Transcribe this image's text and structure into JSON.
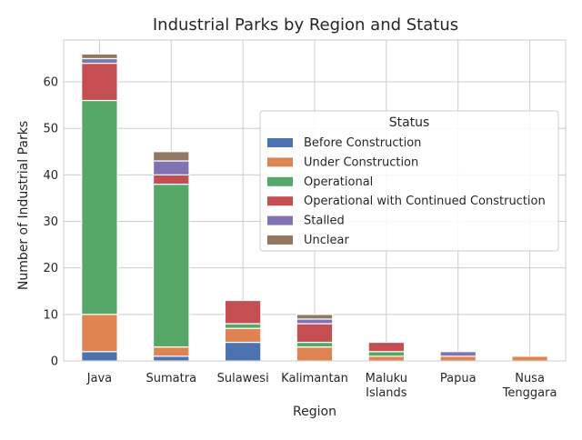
{
  "chart_data": {
    "type": "bar",
    "stacked": true,
    "title": "Industrial Parks by Region and Status",
    "xlabel": "Region",
    "ylabel": "Number of Industrial Parks",
    "categories": [
      [
        "Java"
      ],
      [
        "Sumatra"
      ],
      [
        "Sulawesi"
      ],
      [
        "Kalimantan"
      ],
      [
        "Maluku",
        "Islands"
      ],
      [
        "Papua"
      ],
      [
        "Nusa",
        "Tenggara"
      ]
    ],
    "ylim": [
      0,
      69
    ],
    "yticks": [
      0,
      10,
      20,
      30,
      40,
      50,
      60
    ],
    "grid": true,
    "legend": {
      "title": "Status",
      "placement": "center-right"
    },
    "series": [
      {
        "name": "Before Construction",
        "color": "#4c72b0",
        "values": [
          2,
          1,
          4,
          0,
          0,
          0,
          0
        ]
      },
      {
        "name": "Under Construction",
        "color": "#dd8452",
        "values": [
          8,
          2,
          3,
          3,
          1,
          1,
          1
        ]
      },
      {
        "name": "Operational",
        "color": "#55a868",
        "values": [
          46,
          35,
          1,
          1,
          1,
          0,
          0
        ]
      },
      {
        "name": "Operational with Continued Construction",
        "color": "#c44e52",
        "values": [
          8,
          2,
          5,
          4,
          2,
          0,
          0
        ]
      },
      {
        "name": "Stalled",
        "color": "#8172b3",
        "values": [
          1,
          3,
          0,
          1,
          0,
          1,
          0
        ]
      },
      {
        "name": "Unclear",
        "color": "#937860",
        "values": [
          1,
          2,
          0,
          1,
          0,
          0,
          0
        ]
      }
    ]
  }
}
